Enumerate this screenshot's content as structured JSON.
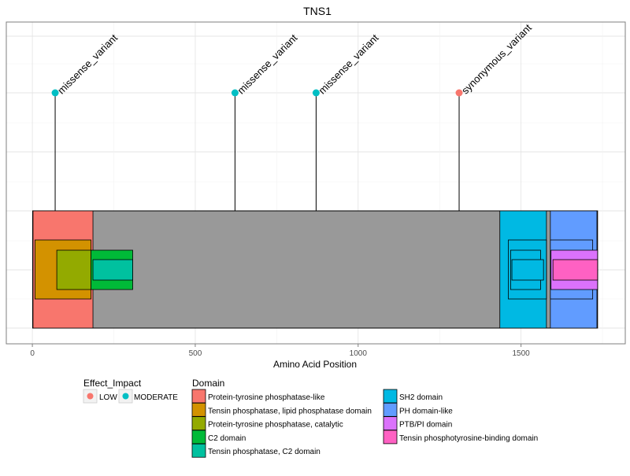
{
  "chart_data": {
    "type": "lollipop-domain",
    "title": "TNS1",
    "xlabel": "Amino Acid Position",
    "xlim": [
      -80,
      1820
    ],
    "xticks": [
      0,
      500,
      1000,
      1500
    ],
    "xtick_labels": [
      "0",
      "500",
      "1000",
      "1500"
    ],
    "grid": true,
    "protein": {
      "start": 1,
      "end": 1735,
      "color": "#999999"
    },
    "variants": [
      {
        "position": 70,
        "label": "missense_variant",
        "impact": "MODERATE"
      },
      {
        "position": 622,
        "label": "missense_variant",
        "impact": "MODERATE"
      },
      {
        "position": 871,
        "label": "missense_variant",
        "impact": "MODERATE"
      },
      {
        "position": 1310,
        "label": "synonymous_variant",
        "impact": "LOW"
      }
    ],
    "domains": [
      {
        "name": "Protein-tyrosine phosphatase-like",
        "start": 2,
        "end": 186,
        "level": 1,
        "color": "#F8766D"
      },
      {
        "name": "Tensin phosphatase, lipid phosphatase domain",
        "start": 8,
        "end": 180,
        "level": 2,
        "color": "#D39200"
      },
      {
        "name": "Protein-tyrosine phosphatase, catalytic",
        "start": 75,
        "end": 180,
        "level": 3,
        "color": "#93AA00"
      },
      {
        "name": "C2 domain",
        "start": 180,
        "end": 308,
        "level": 3,
        "color": "#00BA38"
      },
      {
        "name": "Tensin phosphatase, C2 domain",
        "start": 186,
        "end": 308,
        "level": 4,
        "color": "#00C19F"
      },
      {
        "name": "SH2 domain",
        "start": 1435,
        "end": 1578,
        "level": 1,
        "color": "#00B9E3"
      },
      {
        "name": "SH2 domain",
        "start": 1461,
        "end": 1578,
        "level": 2,
        "color": "#00B9E3"
      },
      {
        "name": "SH2 domain",
        "start": 1468,
        "end": 1560,
        "level": 3,
        "color": "#00B9E3"
      },
      {
        "name": "SH2 domain",
        "start": 1472,
        "end": 1569,
        "level": 4,
        "color": "#00B9E3"
      },
      {
        "name": "PH domain-like",
        "start": 1590,
        "end": 1733,
        "level": 1,
        "color": "#619CFF"
      },
      {
        "name": "PH domain-like",
        "start": 1590,
        "end": 1720,
        "level": 2,
        "color": "#619CFF"
      },
      {
        "name": "PTB/PI domain",
        "start": 1592,
        "end": 1735,
        "level": 3,
        "color": "#DB72FB"
      },
      {
        "name": "Tensin phosphotyrosine-binding domain",
        "start": 1598,
        "end": 1735,
        "level": 4,
        "color": "#FF61C3"
      }
    ],
    "legend_placement": "bottom",
    "legend_impact": {
      "title": "Effect_Impact",
      "items": [
        {
          "label": "LOW",
          "color": "#F8766D"
        },
        {
          "label": "MODERATE",
          "color": "#00BFC4"
        }
      ]
    },
    "legend_domain": {
      "title": "Domain",
      "items": [
        {
          "label": "Protein-tyrosine phosphatase-like",
          "color": "#F8766D"
        },
        {
          "label": "Tensin phosphatase, lipid phosphatase domain",
          "color": "#D39200"
        },
        {
          "label": "Protein-tyrosine phosphatase, catalytic",
          "color": "#93AA00"
        },
        {
          "label": "C2 domain",
          "color": "#00BA38"
        },
        {
          "label": "Tensin phosphatase, C2 domain",
          "color": "#00C19F"
        },
        {
          "label": "SH2 domain",
          "color": "#00B9E3"
        },
        {
          "label": "PH domain-like",
          "color": "#619CFF"
        },
        {
          "label": "PTB/PI domain",
          "color": "#DB72FB"
        },
        {
          "label": "Tensin phosphotyrosine-binding domain",
          "color": "#FF61C3"
        }
      ]
    }
  }
}
